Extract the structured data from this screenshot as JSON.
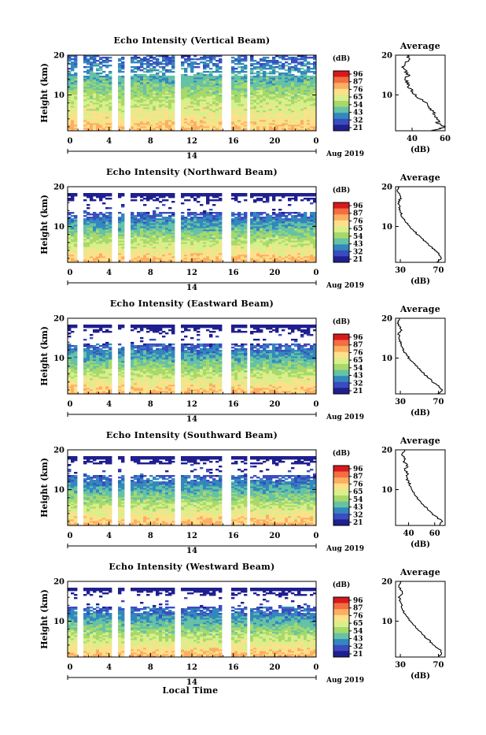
{
  "panels": [
    {
      "title": "Echo Intensity (Vertical Beam)",
      "avg": {
        "xticks": [
          "40",
          "60"
        ],
        "xmin": 30,
        "xmax": 60,
        "profile": [
          [
            1,
            52
          ],
          [
            1.5,
            57
          ],
          [
            2,
            60
          ],
          [
            2.5,
            58
          ],
          [
            3,
            55
          ],
          [
            3.5,
            57
          ],
          [
            4,
            55
          ],
          [
            5,
            54
          ],
          [
            6,
            52
          ],
          [
            7,
            50
          ],
          [
            8,
            48
          ],
          [
            9,
            45
          ],
          [
            10,
            42
          ],
          [
            11,
            40
          ],
          [
            12,
            38
          ],
          [
            13,
            37
          ],
          [
            14,
            36
          ],
          [
            15,
            38
          ],
          [
            16,
            36
          ],
          [
            17,
            34
          ],
          [
            18,
            36
          ],
          [
            19,
            38
          ],
          [
            20,
            37
          ]
        ]
      }
    },
    {
      "title": "Echo Intensity (Northward Beam)",
      "avg": {
        "xticks": [
          "30",
          "70"
        ],
        "xmin": 25,
        "xmax": 77,
        "profile": [
          [
            1,
            68
          ],
          [
            2,
            74
          ],
          [
            3,
            71
          ],
          [
            4,
            66
          ],
          [
            5,
            62
          ],
          [
            6,
            57
          ],
          [
            7,
            53
          ],
          [
            8,
            48
          ],
          [
            9,
            44
          ],
          [
            10,
            40
          ],
          [
            11,
            36
          ],
          [
            12,
            33
          ],
          [
            13,
            31
          ],
          [
            14,
            30
          ],
          [
            15,
            29
          ],
          [
            16,
            28
          ],
          [
            17,
            30
          ],
          [
            18,
            29
          ],
          [
            19,
            27
          ],
          [
            20,
            29
          ]
        ]
      }
    },
    {
      "title": "Echo Intensity (Eastward Beam)",
      "avg": {
        "xticks": [
          "30",
          "70"
        ],
        "xmin": 25,
        "xmax": 77,
        "profile": [
          [
            1,
            69
          ],
          [
            2,
            74
          ],
          [
            3,
            70
          ],
          [
            4,
            64
          ],
          [
            5,
            60
          ],
          [
            6,
            55
          ],
          [
            7,
            51
          ],
          [
            8,
            47
          ],
          [
            9,
            43
          ],
          [
            10,
            39
          ],
          [
            11,
            36
          ],
          [
            12,
            33
          ],
          [
            13,
            31
          ],
          [
            14,
            30
          ],
          [
            15,
            29
          ],
          [
            16,
            28
          ],
          [
            17,
            31
          ],
          [
            18,
            29
          ],
          [
            19,
            27
          ],
          [
            20,
            29
          ]
        ]
      }
    },
    {
      "title": "Echo Intensity (Southward Beam)",
      "avg": {
        "xticks": [
          "40",
          "60"
        ],
        "xmin": 30,
        "xmax": 68,
        "profile": [
          [
            1,
            64
          ],
          [
            2,
            66
          ],
          [
            3,
            62
          ],
          [
            4,
            58
          ],
          [
            5,
            55
          ],
          [
            6,
            52
          ],
          [
            7,
            49
          ],
          [
            8,
            47
          ],
          [
            9,
            45
          ],
          [
            10,
            43
          ],
          [
            11,
            41
          ],
          [
            12,
            40
          ],
          [
            13,
            38
          ],
          [
            14,
            40
          ],
          [
            15,
            37
          ],
          [
            16,
            39
          ],
          [
            17,
            36
          ],
          [
            18,
            37
          ],
          [
            19,
            35
          ],
          [
            20,
            37
          ]
        ]
      }
    },
    {
      "title": "Echo Intensity (Westward Beam)",
      "avg": {
        "xticks": [
          "30",
          "70"
        ],
        "xmin": 25,
        "xmax": 77,
        "profile": [
          [
            1,
            70
          ],
          [
            2,
            74
          ],
          [
            3,
            71
          ],
          [
            4,
            65
          ],
          [
            5,
            61
          ],
          [
            6,
            56
          ],
          [
            7,
            52
          ],
          [
            8,
            48
          ],
          [
            9,
            44
          ],
          [
            10,
            40
          ],
          [
            11,
            37
          ],
          [
            12,
            34
          ],
          [
            13,
            32
          ],
          [
            14,
            31
          ],
          [
            15,
            30
          ],
          [
            16,
            29
          ],
          [
            17,
            33
          ],
          [
            18,
            30
          ],
          [
            19,
            28
          ],
          [
            20,
            31
          ]
        ]
      }
    }
  ],
  "main_yticks": [
    "20",
    "10"
  ],
  "avg_yticks": [
    "20",
    "10"
  ],
  "xticks": [
    "0",
    "4",
    "8",
    "12",
    "16",
    "20",
    "0"
  ],
  "date_day": "14",
  "date_month": "Aug 2019",
  "ylabel": "Height (km)",
  "xlabel": "Local Time",
  "avg_title": "Average",
  "avg_xlabel": "(dB)",
  "colorbar": {
    "unit": "(dB)",
    "labels": [
      "96",
      "87",
      "76",
      "65",
      "54",
      "43",
      "32",
      "21"
    ],
    "colors": [
      "#d7191c",
      "#f46d43",
      "#fdae61",
      "#fee08b",
      "#d9ef8b",
      "#a6d96a",
      "#66c2a5",
      "#3288bd",
      "#3b4cc0",
      "#1f1f8f"
    ]
  },
  "chart_data": [
    {
      "type": "heatmap",
      "title": "Echo Intensity (Vertical Beam)",
      "xlabel": "",
      "ylabel": "Height (km)",
      "x_range_hours": [
        0,
        24
      ],
      "y_range_km": [
        1,
        20
      ],
      "color_range_db": [
        21,
        96
      ]
    },
    {
      "type": "heatmap",
      "title": "Echo Intensity (Northward Beam)",
      "xlabel": "",
      "ylabel": "Height (km)",
      "x_range_hours": [
        0,
        24
      ],
      "y_range_km": [
        1,
        20
      ],
      "color_range_db": [
        21,
        96
      ]
    },
    {
      "type": "heatmap",
      "title": "Echo Intensity (Eastward Beam)",
      "xlabel": "",
      "ylabel": "Height (km)",
      "x_range_hours": [
        0,
        24
      ],
      "y_range_km": [
        1,
        20
      ],
      "color_range_db": [
        21,
        96
      ]
    },
    {
      "type": "heatmap",
      "title": "Echo Intensity (Southward Beam)",
      "xlabel": "",
      "ylabel": "Height (km)",
      "x_range_hours": [
        0,
        24
      ],
      "y_range_km": [
        1,
        20
      ],
      "color_range_db": [
        21,
        96
      ]
    },
    {
      "type": "heatmap",
      "title": "Echo Intensity (Westward Beam)",
      "xlabel": "Local Time",
      "ylabel": "Height (km)",
      "x_range_hours": [
        0,
        24
      ],
      "y_range_km": [
        1,
        20
      ],
      "color_range_db": [
        21,
        96
      ]
    }
  ]
}
